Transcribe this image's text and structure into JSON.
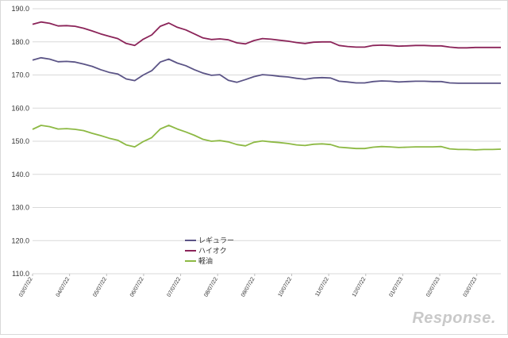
{
  "chart_data": {
    "type": "line",
    "ylim": [
      110,
      190
    ],
    "yticks": [
      "110.0",
      "120.0",
      "130.0",
      "140.0",
      "150.0",
      "160.0",
      "170.0",
      "180.0",
      "190.0"
    ],
    "xticks": [
      "03/07/22",
      "04/07/22",
      "05/07/22",
      "06/07/22",
      "07/07/22",
      "08/07/22",
      "09/07/22",
      "10/07/22",
      "11/07/22",
      "12/07/22",
      "01/07/23",
      "02/07/23",
      "03/07/23"
    ],
    "grid": true,
    "legend": "center",
    "series": [
      {
        "name": "レギュラー",
        "color": "#5b5486",
        "values": [
          174.5,
          175.2,
          174.8,
          174.0,
          174.1,
          173.9,
          173.3,
          172.6,
          171.6,
          170.8,
          170.3,
          168.8,
          168.3,
          170.0,
          171.3,
          173.9,
          174.8,
          173.6,
          172.8,
          171.6,
          170.6,
          169.9,
          170.1,
          168.4,
          167.8,
          168.6,
          169.5,
          170.1,
          169.9,
          169.6,
          169.4,
          169.0,
          168.7,
          169.1,
          169.2,
          169.1,
          168.1,
          167.9,
          167.6,
          167.6,
          168.0,
          168.2,
          168.1,
          167.9,
          168.0,
          168.1,
          168.1,
          168.0,
          168.0,
          167.6,
          167.5,
          167.5,
          167.5,
          167.5,
          167.5,
          167.5
        ]
      },
      {
        "name": "ハイオク",
        "color": "#8b2459",
        "values": [
          185.3,
          186.0,
          185.6,
          184.8,
          184.9,
          184.7,
          184.1,
          183.3,
          182.4,
          181.7,
          181.0,
          179.5,
          178.9,
          180.8,
          182.1,
          184.7,
          185.7,
          184.4,
          183.6,
          182.4,
          181.2,
          180.7,
          180.9,
          180.6,
          179.7,
          179.4,
          180.4,
          181.0,
          180.8,
          180.5,
          180.2,
          179.8,
          179.5,
          179.9,
          180.0,
          180.0,
          178.9,
          178.6,
          178.4,
          178.4,
          178.9,
          179.0,
          178.9,
          178.7,
          178.8,
          178.9,
          178.9,
          178.8,
          178.8,
          178.4,
          178.2,
          178.2,
          178.3,
          178.3,
          178.3,
          178.3
        ]
      },
      {
        "name": "軽油",
        "color": "#8db944",
        "values": [
          153.6,
          154.8,
          154.4,
          153.7,
          153.8,
          153.6,
          153.2,
          152.4,
          151.7,
          150.9,
          150.3,
          148.9,
          148.3,
          149.9,
          151.1,
          153.7,
          154.8,
          153.7,
          152.8,
          151.8,
          150.6,
          150.0,
          150.2,
          149.8,
          149.0,
          148.6,
          149.7,
          150.1,
          149.8,
          149.6,
          149.3,
          148.9,
          148.7,
          149.1,
          149.2,
          149.0,
          148.2,
          148.0,
          147.8,
          147.8,
          148.2,
          148.4,
          148.3,
          148.1,
          148.2,
          148.3,
          148.3,
          148.3,
          148.4,
          147.7,
          147.5,
          147.5,
          147.4,
          147.5,
          147.5,
          147.6
        ]
      }
    ]
  },
  "watermark": "Response."
}
